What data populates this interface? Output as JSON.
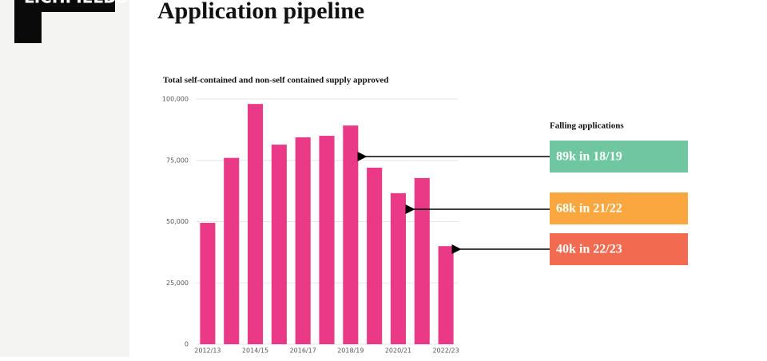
{
  "logo": "LICHFIELDS",
  "title": "Application pipeline",
  "chart_data": {
    "type": "bar",
    "title": "Total self-contained and non-self contained supply approved",
    "categories": [
      "2012/13",
      null,
      "2014/15",
      null,
      "2016/17",
      null,
      "2018/19",
      null,
      "2020/21",
      null,
      "2022/23"
    ],
    "values": [
      49500,
      76000,
      98000,
      81400,
      84400,
      85000,
      89200,
      72000,
      61600,
      67800,
      40000
    ],
    "color": "#ea3a87",
    "ylim": [
      0,
      100000
    ],
    "yticks": [
      {
        "value": 0,
        "label": "0"
      },
      {
        "value": 25000,
        "label": "25,000"
      },
      {
        "value": 50000,
        "label": "50,000"
      },
      {
        "value": 75000,
        "label": "75,000"
      },
      {
        "value": 100000,
        "label": "100,000"
      }
    ],
    "grid": true
  },
  "annotations": {
    "heading": "Falling applications",
    "items": [
      {
        "text": "89k in 18/19",
        "color": "#6fc7a0"
      },
      {
        "text": "68k in 21/22",
        "color": "#f9a73e"
      },
      {
        "text": "40k in 22/23",
        "color": "#f26b50"
      }
    ]
  }
}
